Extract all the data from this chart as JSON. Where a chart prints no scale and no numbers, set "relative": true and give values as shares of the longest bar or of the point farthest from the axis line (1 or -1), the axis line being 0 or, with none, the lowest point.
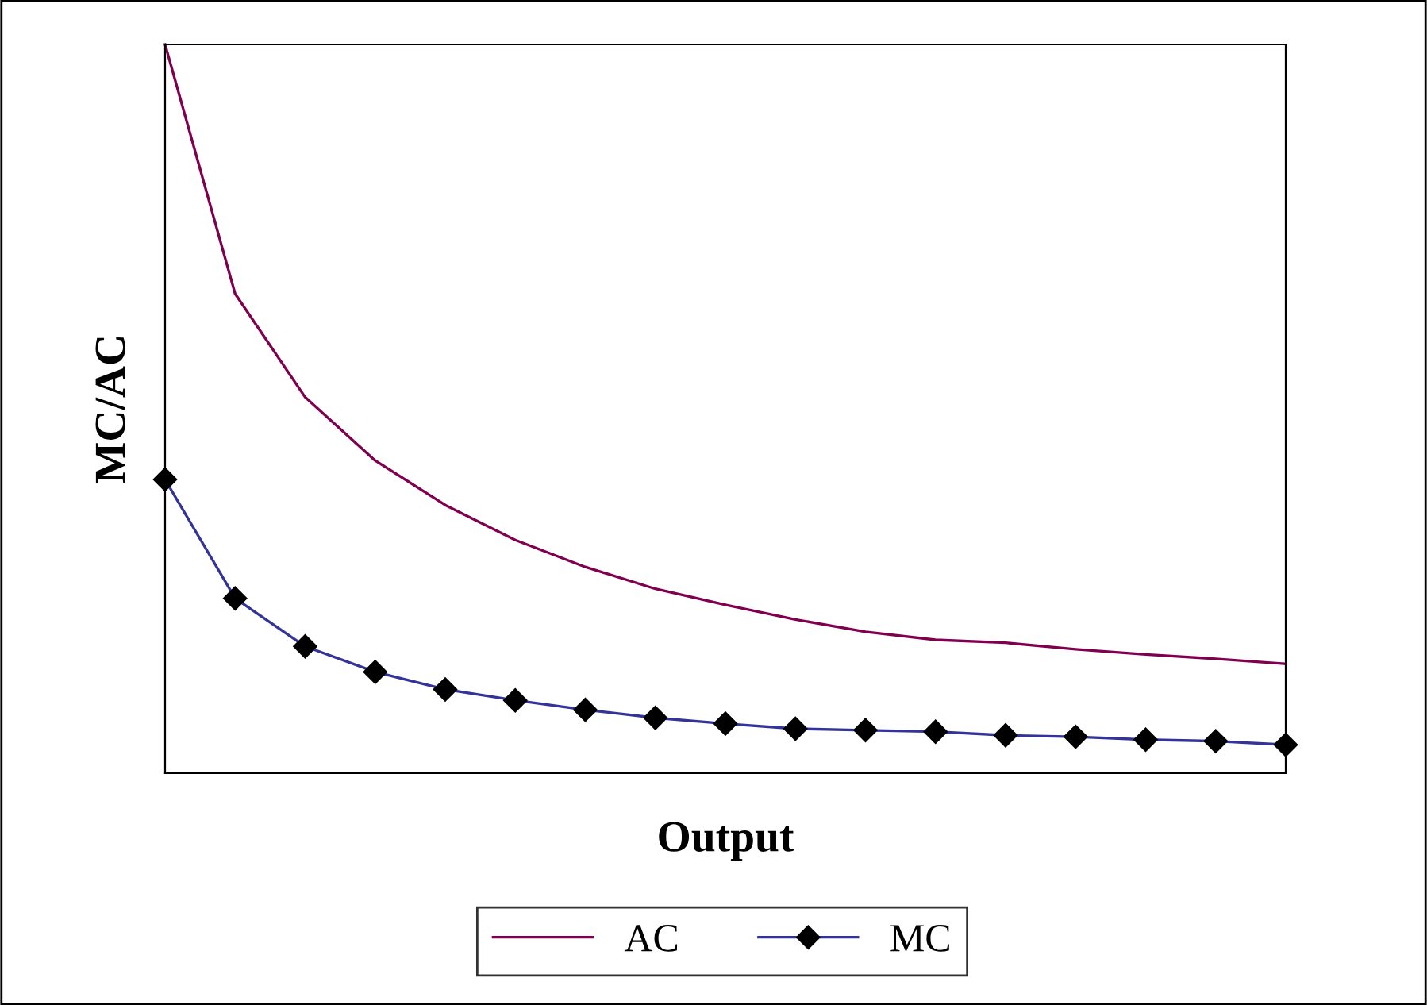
{
  "chart_data": {
    "type": "line",
    "relative": true,
    "xlabel": "Output",
    "ylabel": "MC/AC",
    "legend": "bottom",
    "grid": false,
    "categories": [
      null,
      null,
      null,
      null,
      null,
      null,
      null,
      null,
      null,
      null,
      null,
      null,
      null,
      null,
      null,
      null,
      null
    ],
    "series": [
      {
        "name": "AC",
        "color": "#800050",
        "marker": "none",
        "values": [
          1.0,
          0.658,
          0.516,
          0.429,
          0.368,
          0.32,
          0.283,
          0.253,
          0.231,
          0.211,
          0.194,
          0.183,
          0.179,
          0.17,
          0.163,
          0.157,
          0.15
        ]
      },
      {
        "name": "MC",
        "color": "#333399",
        "marker": "diamond",
        "values": [
          0.403,
          0.24,
          0.174,
          0.139,
          0.115,
          0.1,
          0.087,
          0.076,
          0.068,
          0.061,
          0.059,
          0.057,
          0.052,
          0.05,
          0.046,
          0.044,
          0.039
        ]
      }
    ]
  }
}
